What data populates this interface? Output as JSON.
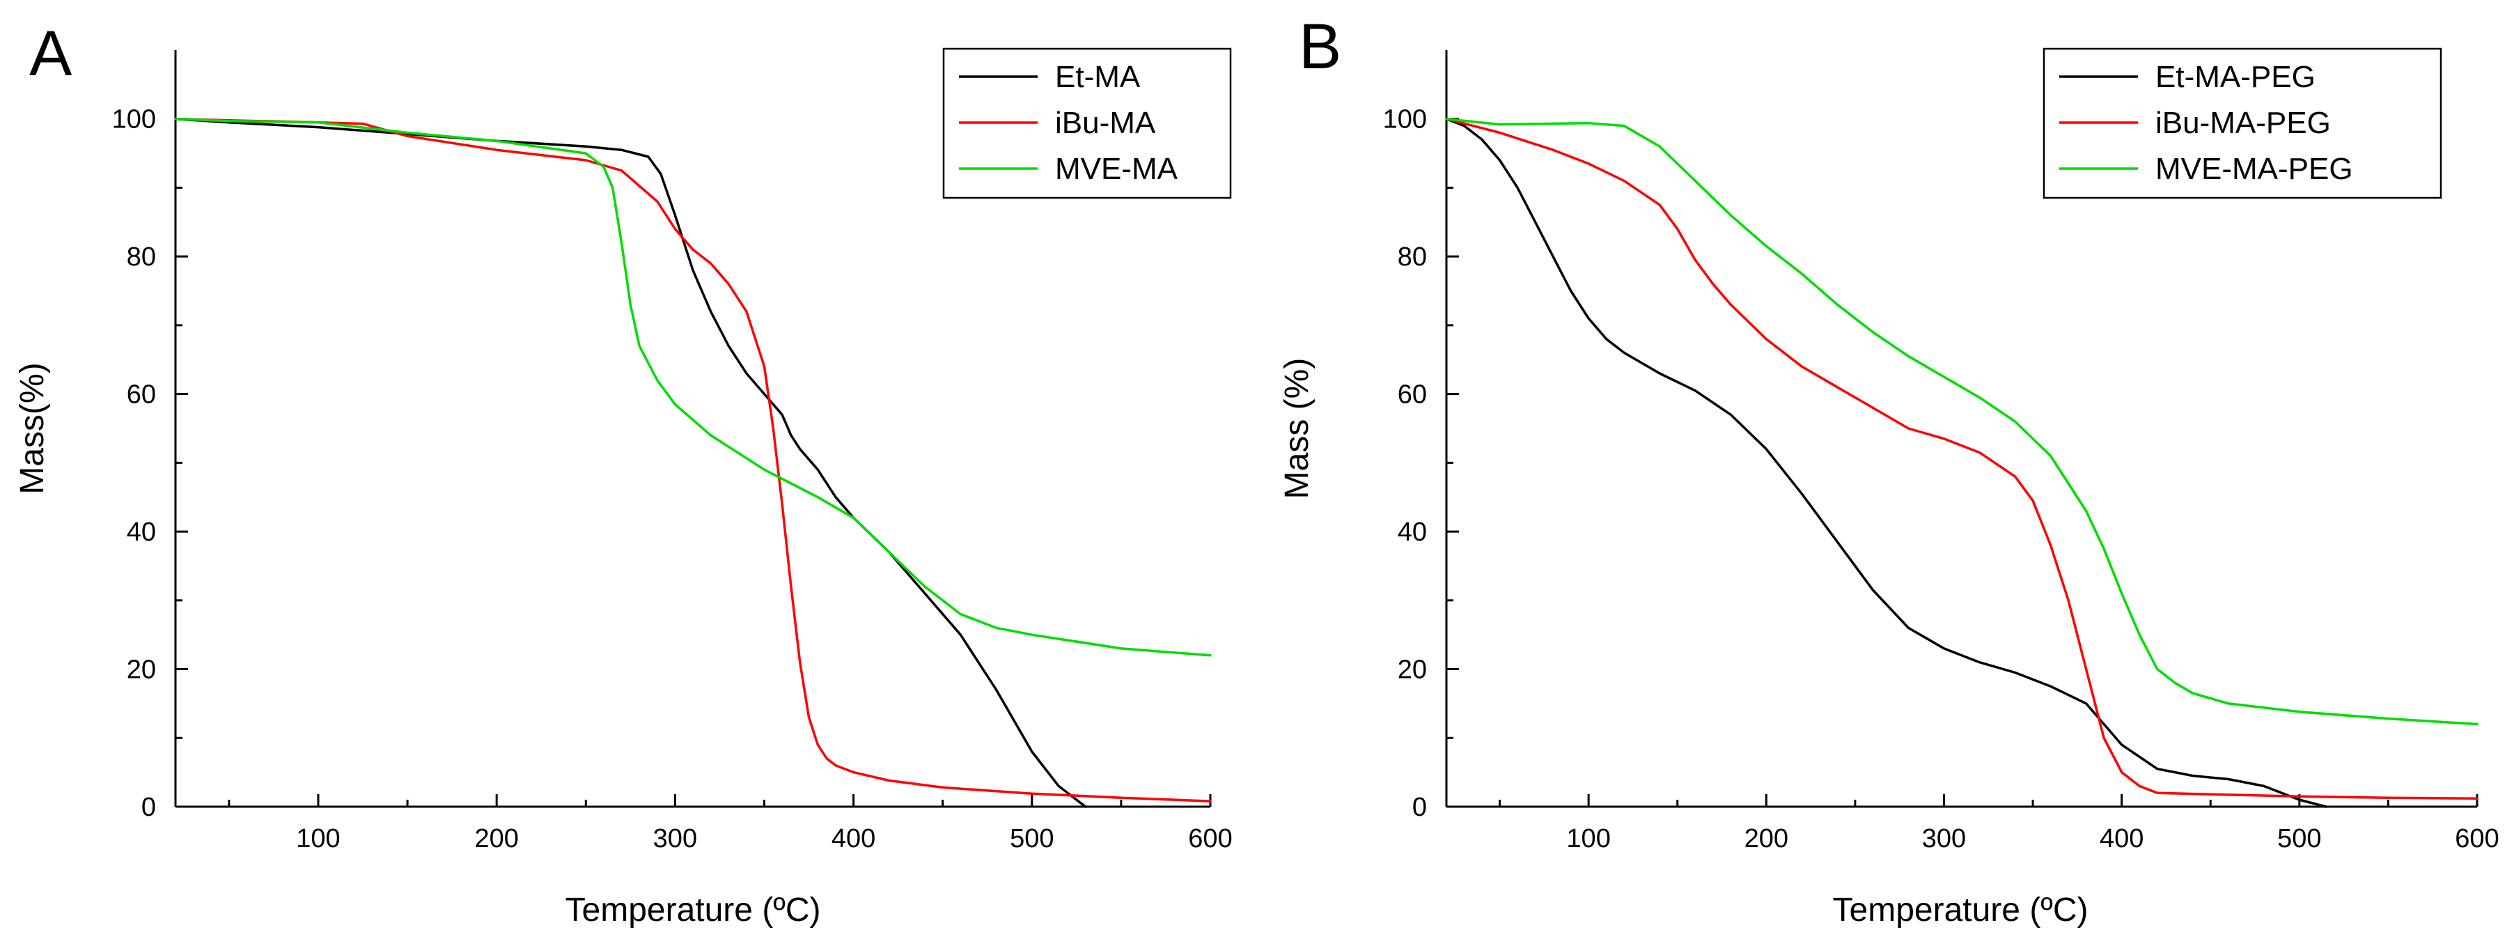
{
  "chart_data": [
    {
      "panel": "A",
      "type": "line",
      "xlabel": "Temperature (ºC)",
      "ylabel": "Mass(%)",
      "xlim": [
        20,
        600
      ],
      "ylim": [
        0,
        110
      ],
      "xticks": [
        100,
        200,
        300,
        400,
        500,
        600
      ],
      "yticks": [
        0,
        20,
        40,
        60,
        80,
        100
      ],
      "legend_position": "top-right",
      "series": [
        {
          "name": "Et-MA",
          "color": "#000000",
          "x": [
            20,
            50,
            100,
            150,
            200,
            250,
            270,
            285,
            292,
            300,
            310,
            320,
            330,
            340,
            350,
            360,
            365,
            370,
            380,
            390,
            400,
            420,
            440,
            460,
            480,
            500,
            515,
            525,
            530
          ],
          "y": [
            100,
            99.5,
            98.8,
            97.8,
            96.8,
            96,
            95.5,
            94.5,
            92,
            86,
            78,
            72,
            67,
            63,
            60,
            57,
            54,
            52,
            49,
            45,
            42,
            37,
            31,
            25,
            17,
            8,
            3,
            1,
            0
          ]
        },
        {
          "name": "iBu-MA",
          "color": "#ff0000",
          "x": [
            20,
            50,
            100,
            125,
            150,
            200,
            250,
            270,
            290,
            300,
            310,
            320,
            330,
            340,
            350,
            355,
            360,
            365,
            370,
            375,
            380,
            385,
            390,
            400,
            420,
            450,
            500,
            550,
            600
          ],
          "y": [
            100,
            99.8,
            99.5,
            99.3,
            97.5,
            95.5,
            94,
            92.5,
            88,
            84,
            81,
            79,
            76,
            72,
            64,
            55,
            44,
            32,
            21,
            13,
            9,
            7,
            6,
            5,
            3.8,
            2.8,
            1.9,
            1.3,
            0.8
          ]
        },
        {
          "name": "MVE-MA",
          "color": "#00dd00",
          "x": [
            20,
            50,
            100,
            150,
            200,
            250,
            260,
            265,
            270,
            275,
            280,
            290,
            300,
            320,
            350,
            380,
            400,
            420,
            440,
            460,
            480,
            500,
            550,
            600
          ],
          "y": [
            100,
            99.7,
            99.5,
            98,
            96.8,
            95,
            93,
            90,
            82,
            73,
            67,
            62,
            58.5,
            54,
            49,
            45,
            42,
            37,
            32,
            28,
            26,
            25,
            23,
            22
          ]
        }
      ]
    },
    {
      "panel": "B",
      "type": "line",
      "xlabel": "Temperature (ºC)",
      "ylabel": "Mass (%)",
      "xlim": [
        20,
        600
      ],
      "ylim": [
        0,
        110
      ],
      "xticks": [
        100,
        200,
        300,
        400,
        500,
        600
      ],
      "yticks": [
        0,
        20,
        40,
        60,
        80,
        100
      ],
      "legend_position": "top-right",
      "series": [
        {
          "name": "Et-MA-PEG",
          "color": "#000000",
          "x": [
            20,
            30,
            40,
            50,
            60,
            70,
            80,
            90,
            100,
            110,
            120,
            140,
            160,
            180,
            200,
            220,
            240,
            260,
            280,
            300,
            320,
            340,
            360,
            380,
            390,
            400,
            420,
            440,
            460,
            480,
            500,
            515
          ],
          "y": [
            100,
            99,
            97,
            94,
            90,
            85,
            80,
            75,
            71,
            68,
            66,
            63,
            60.5,
            57,
            52,
            45.5,
            38.5,
            31.5,
            26,
            23,
            21,
            19.5,
            17.5,
            15,
            12,
            9,
            5.5,
            4.5,
            4,
            3,
            1,
            0
          ]
        },
        {
          "name": "iBu-MA-PEG",
          "color": "#ff0000",
          "x": [
            20,
            50,
            80,
            100,
            120,
            140,
            150,
            160,
            170,
            180,
            200,
            220,
            240,
            260,
            280,
            300,
            320,
            340,
            350,
            360,
            370,
            380,
            390,
            400,
            410,
            420,
            450,
            500,
            550,
            600
          ],
          "y": [
            100,
            98,
            95.5,
            93.5,
            91,
            87.5,
            84,
            79.5,
            76,
            73,
            68,
            64,
            61,
            58,
            55,
            53.5,
            51.5,
            48,
            44.5,
            38,
            30,
            20,
            10,
            5,
            3,
            2,
            1.8,
            1.5,
            1.3,
            1.2
          ]
        },
        {
          "name": "MVE-MA-PEG",
          "color": "#00dd00",
          "x": [
            20,
            50,
            100,
            120,
            140,
            160,
            180,
            200,
            220,
            240,
            260,
            280,
            300,
            320,
            340,
            360,
            380,
            390,
            400,
            410,
            420,
            430,
            440,
            460,
            500,
            550,
            600
          ],
          "y": [
            100,
            99.2,
            99.4,
            99,
            96,
            91,
            86,
            81.5,
            77.5,
            73,
            69,
            65.5,
            62.5,
            59.5,
            56,
            51,
            43,
            37.5,
            31,
            25,
            20,
            18,
            16.5,
            15,
            13.8,
            12.8,
            12
          ]
        }
      ]
    }
  ]
}
